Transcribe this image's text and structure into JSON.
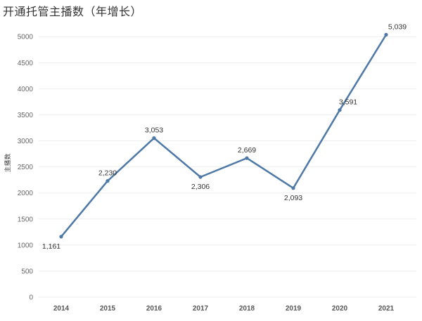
{
  "title": "开通托管主播数（年增长）",
  "colors": {
    "line": "#4e79a7",
    "grid": "#eeeeee",
    "text": "#333333"
  },
  "chart_data": {
    "type": "line",
    "title": "开通托管主播数（年增长）",
    "xlabel": "",
    "ylabel": "主播数",
    "x": [
      "2014",
      "2015",
      "2016",
      "2017",
      "2018",
      "2019",
      "2020",
      "2021"
    ],
    "series": [
      {
        "values": [
          1161,
          2230,
          3053,
          2306,
          2669,
          2093,
          3591,
          5039
        ]
      }
    ],
    "data_labels": [
      "1,161",
      "2,230",
      "3,053",
      "2,306",
      "2,669",
      "2,093",
      "3,591",
      "5,039"
    ],
    "yticks": [
      0,
      500,
      1000,
      1500,
      2000,
      2500,
      3000,
      3500,
      4000,
      4500,
      5000
    ],
    "ylim": [
      0,
      5300
    ],
    "grid": true,
    "legend": "none"
  }
}
